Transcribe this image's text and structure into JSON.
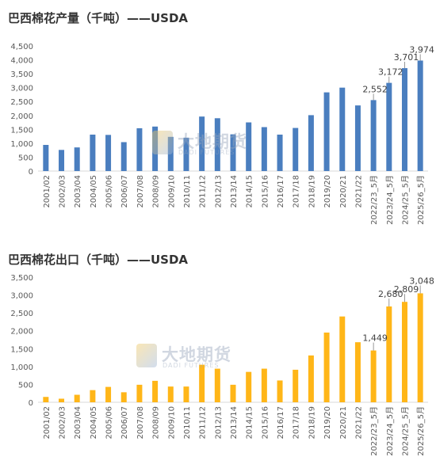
{
  "charts": [
    {
      "title": "巴西棉花产量（千吨）——USDA",
      "watermark": {
        "cn": "大地期货",
        "en": "DADI FUTURES"
      }
    },
    {
      "title": "巴西棉花出口（千吨）——USDA",
      "watermark": {
        "cn": "大地期货",
        "en": "DADI FUTURES"
      }
    }
  ],
  "colors": {
    "production_bar": "#4a7ebf",
    "export_bar": "#ffb618",
    "axis_text": "#595959",
    "gridline": "#d9d9d9"
  },
  "chart_data": [
    {
      "type": "bar",
      "title": "巴西棉花产量（千吨）——USDA",
      "categories": [
        "2001/02",
        "2002/03",
        "2003/04",
        "2004/05",
        "2005/06",
        "2006/07",
        "2007/08",
        "2008/09",
        "2009/10",
        "2010/11",
        "2011/12",
        "2012/13",
        "2013/14",
        "2014/15",
        "2015/16",
        "2016/17",
        "2017/18",
        "2018/19",
        "2019/20",
        "2020/21",
        "2021/22",
        "2022/23_5月",
        "2023/24_5月",
        "2024/25_5月",
        "2025/26_5月"
      ],
      "values": [
        940,
        760,
        850,
        1310,
        1300,
        1040,
        1540,
        1600,
        1230,
        1200,
        1960,
        1900,
        1320,
        1750,
        1580,
        1310,
        1550,
        2010,
        2830,
        3000,
        2360,
        2552,
        3172,
        3701,
        3974
      ],
      "data_labels": [
        {
          "index": 21,
          "text": "2,552"
        },
        {
          "index": 22,
          "text": "3,172"
        },
        {
          "index": 23,
          "text": "3,701"
        },
        {
          "index": 24,
          "text": "3,974"
        }
      ],
      "yticks": [
        "0",
        "500",
        "1,000",
        "1,500",
        "2,000",
        "2,500",
        "3,000",
        "3,500",
        "4,000",
        "4,500"
      ],
      "ylim": [
        0,
        4500
      ],
      "xlabel": "",
      "ylabel": "",
      "grid": false,
      "legend": false
    },
    {
      "type": "bar",
      "title": "巴西棉花出口（千吨）——USDA",
      "categories": [
        "2001/02",
        "2002/03",
        "2003/04",
        "2004/05",
        "2005/06",
        "2006/07",
        "2007/08",
        "2008/09",
        "2009/10",
        "2010/11",
        "2011/12",
        "2012/13",
        "2013/14",
        "2014/15",
        "2015/16",
        "2016/17",
        "2017/18",
        "2018/19",
        "2019/20",
        "2020/21",
        "2021/22",
        "2022/23_5月",
        "2023/24_5月",
        "2024/25_5月",
        "2025/26_5月"
      ],
      "values": [
        150,
        100,
        210,
        340,
        430,
        280,
        490,
        600,
        440,
        440,
        1050,
        940,
        490,
        850,
        940,
        610,
        910,
        1310,
        1950,
        2400,
        1680,
        1449,
        2680,
        2809,
        3048
      ],
      "data_labels": [
        {
          "index": 21,
          "text": "1,449"
        },
        {
          "index": 22,
          "text": "2,680"
        },
        {
          "index": 23,
          "text": "2,809"
        },
        {
          "index": 24,
          "text": "3,048"
        }
      ],
      "yticks": [
        "0",
        "500",
        "1,000",
        "1,500",
        "2,000",
        "2,500",
        "3,000",
        "3,500"
      ],
      "ylim": [
        0,
        3500
      ],
      "xlabel": "",
      "ylabel": "",
      "grid": false,
      "legend": false
    }
  ]
}
